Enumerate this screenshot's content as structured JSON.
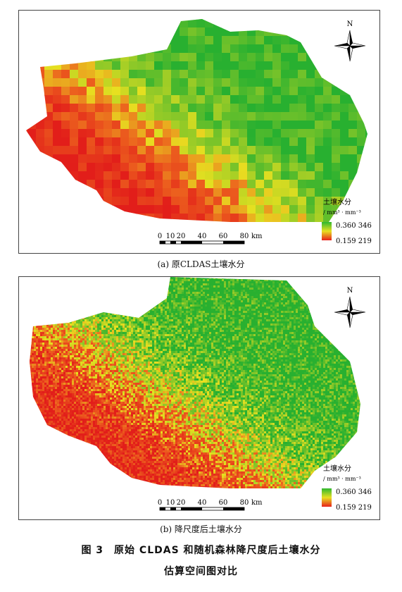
{
  "panels": [
    {
      "id": "a",
      "caption": "(a) 原CLDAS土壤水分",
      "north": "N",
      "scale": {
        "ticks": [
          "0",
          "10",
          "20",
          "40",
          "60",
          "80"
        ],
        "unit": "km"
      },
      "legend": {
        "title": "土壤水分",
        "unit": "/ mm³ · mm⁻³",
        "max": "0.360 346",
        "min": "0.159 219"
      },
      "resolution": "coarse"
    },
    {
      "id": "b",
      "caption": "(b) 降尺度后土壤水分",
      "north": "N",
      "scale": {
        "ticks": [
          "0",
          "10",
          "20",
          "40",
          "60",
          "80"
        ],
        "unit": "km"
      },
      "legend": {
        "title": "土壤水分",
        "unit": "/ mm³ · mm⁻³",
        "max": "0.360 346",
        "min": "0.159 219"
      },
      "resolution": "fine"
    }
  ],
  "figure": {
    "title_line1": "图 3　原始 CLDAS 和随机森林降尺度后土壤水分",
    "title_line2": "估算空间图对比"
  },
  "colors": {
    "high": "#2fb82f",
    "mid": "#e8e020",
    "low": "#e8201c"
  }
}
